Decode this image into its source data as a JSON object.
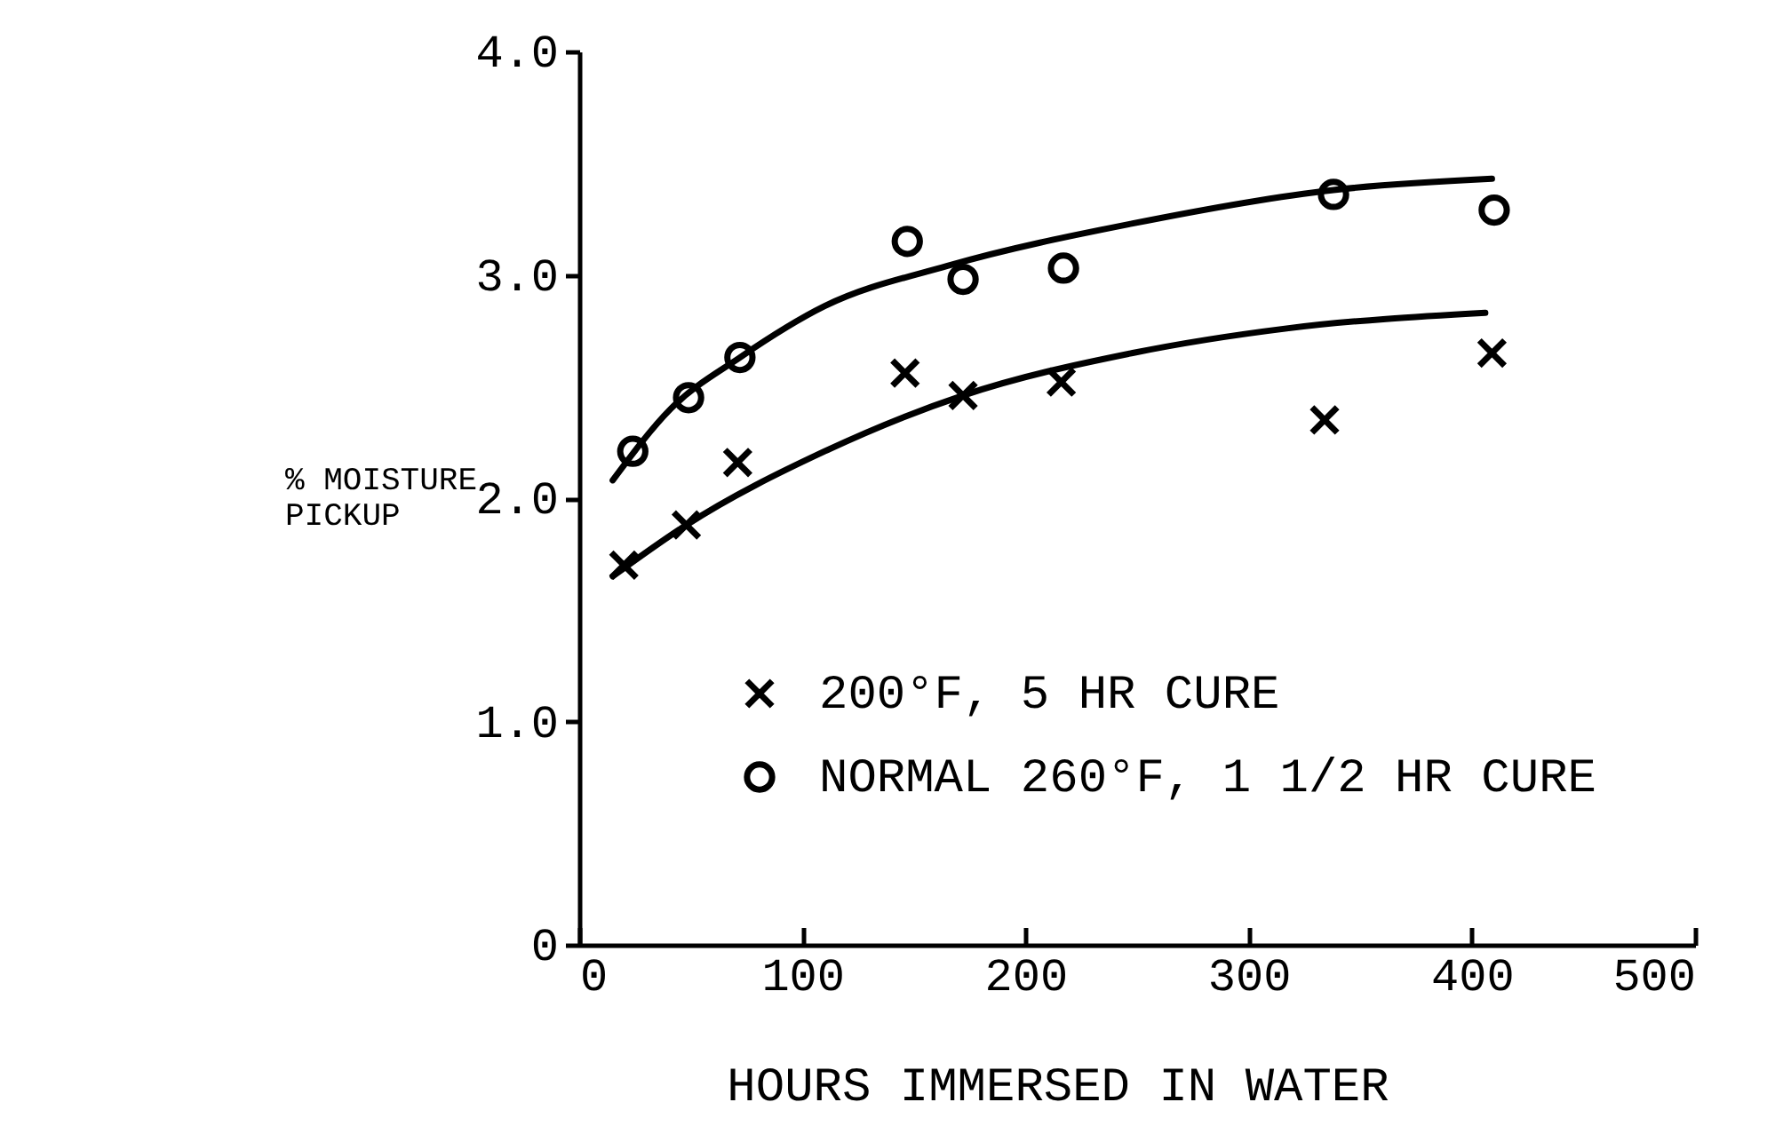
{
  "chart_data": {
    "type": "scatter",
    "xlabel": "HOURS IMMERSED IN WATER",
    "ylabel": "% MOISTURE\nPICKUP",
    "xlim": [
      0,
      500
    ],
    "xticks": [
      0,
      100,
      200,
      300,
      400,
      500
    ],
    "ylim": [
      0,
      4
    ],
    "yticks": [
      {
        "value": 0,
        "label": "0"
      },
      {
        "value": 1,
        "label": "1.0"
      },
      {
        "value": 2,
        "label": "2.0"
      },
      {
        "value": 3,
        "label": "3.0"
      },
      {
        "value": 4,
        "label": "4.0"
      }
    ],
    "grid": false,
    "legend": "bottom",
    "series": [
      {
        "name": "200°F, 5 HR CURE",
        "marker": "cross",
        "color": "#000000",
        "x": [
          20,
          48,
          71,
          146,
          172,
          216,
          334,
          409
        ],
        "values": [
          1.7,
          1.88,
          2.16,
          2.56,
          2.46,
          2.52,
          2.35,
          2.65
        ]
      },
      {
        "name": "NORMAL 260°F, 1 1/2 HR CURE",
        "marker": "circle",
        "color": "#000000",
        "x": [
          24,
          49,
          72,
          147,
          172,
          217,
          338,
          410
        ],
        "values": [
          2.21,
          2.45,
          2.63,
          3.15,
          2.98,
          3.03,
          3.36,
          3.29
        ]
      },
      {
        "type": "line",
        "color": "#000000",
        "x": [
          15,
          41,
          72,
          110,
          165,
          248,
          338,
          409
        ],
        "values": [
          2.08,
          2.4,
          2.63,
          2.86,
          3.04,
          3.23,
          3.38,
          3.43
        ]
      },
      {
        "type": "line",
        "color": "#000000",
        "x": [
          15,
          48,
          110,
          172,
          248,
          317,
          406
        ],
        "values": [
          1.65,
          1.88,
          2.21,
          2.46,
          2.65,
          2.76,
          2.83
        ]
      }
    ]
  }
}
